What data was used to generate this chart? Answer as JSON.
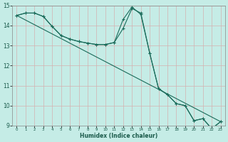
{
  "xlabel": "Humidex (Indice chaleur)",
  "background_color": "#c5ece6",
  "grid_color_major": "#d4b0b0",
  "line_color": "#1a6b5a",
  "xlim": [
    -0.5,
    23.5
  ],
  "ylim": [
    9,
    15
  ],
  "yticks": [
    9,
    10,
    11,
    12,
    13,
    14,
    15
  ],
  "xticks": [
    0,
    1,
    2,
    3,
    4,
    5,
    6,
    7,
    8,
    9,
    10,
    11,
    12,
    13,
    14,
    15,
    16,
    17,
    18,
    19,
    20,
    21,
    22,
    23
  ],
  "line1_x": [
    0,
    1,
    2,
    3,
    4,
    5,
    6,
    7,
    8,
    9,
    10,
    11,
    12,
    13,
    14,
    15,
    16,
    17,
    18,
    19,
    20,
    21,
    22,
    23
  ],
  "line1_y": [
    14.5,
    14.62,
    14.62,
    14.45,
    13.95,
    13.5,
    13.32,
    13.2,
    13.12,
    13.05,
    13.05,
    13.15,
    13.85,
    14.85,
    14.62,
    12.62,
    10.85,
    10.55,
    10.1,
    10.0,
    9.25,
    9.35,
    8.85,
    9.2
  ],
  "line2_x": [
    0,
    1,
    2,
    3,
    4,
    5,
    6,
    7,
    8,
    9,
    10,
    11,
    12,
    13,
    14,
    15,
    16,
    17,
    18,
    19,
    20,
    21,
    22,
    23
  ],
  "line2_y": [
    14.5,
    14.62,
    14.62,
    14.45,
    13.95,
    13.5,
    13.32,
    13.2,
    13.12,
    13.05,
    13.05,
    13.15,
    14.3,
    14.92,
    14.55,
    12.62,
    10.85,
    10.55,
    10.1,
    10.0,
    9.25,
    9.35,
    8.85,
    9.2
  ],
  "line3_x": [
    0,
    23
  ],
  "line3_y": [
    14.5,
    9.2
  ]
}
